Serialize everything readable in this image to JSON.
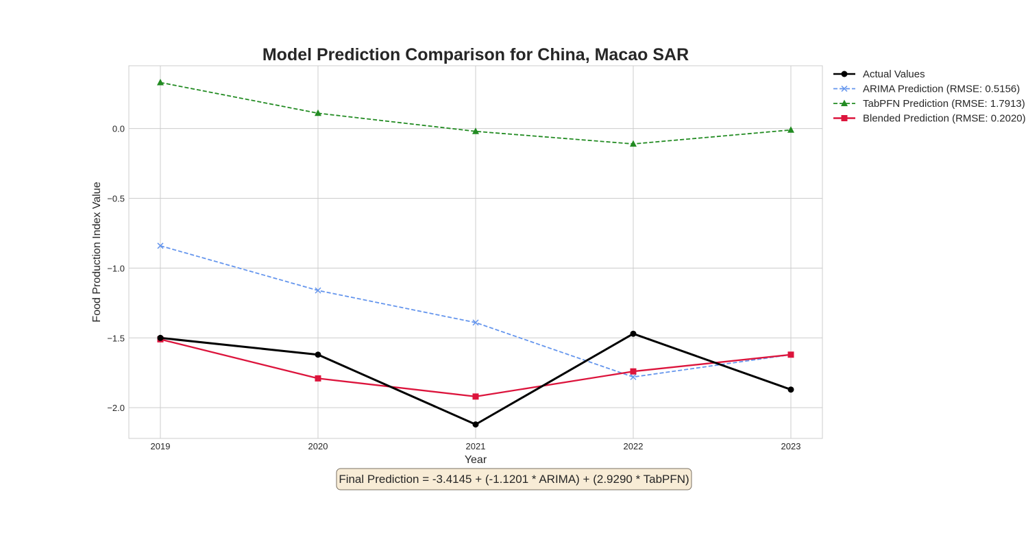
{
  "chart_data": {
    "type": "line",
    "title": "Model Prediction Comparison for China, Macao SAR",
    "xlabel": "Year",
    "ylabel": "Food Production Index Value",
    "x": [
      2019,
      2020,
      2021,
      2022,
      2023
    ],
    "x_tick_labels": [
      "2019",
      "2020",
      "2021",
      "2022",
      "2023"
    ],
    "xlim": [
      2018.8,
      2023.2
    ],
    "ylim": [
      -2.22,
      0.45
    ],
    "y_ticks": [
      0.0,
      -0.5,
      -1.0,
      -1.5,
      -2.0
    ],
    "y_tick_labels": [
      "0.0",
      "−0.5",
      "−1.0",
      "−1.5",
      "−2.0"
    ],
    "grid": true,
    "legend_position": "outside-right-top",
    "series": [
      {
        "name": "Actual Values",
        "values": [
          -1.5,
          -1.62,
          -2.12,
          -1.47,
          -1.87
        ],
        "color": "#000000",
        "dash": "solid",
        "marker": "circle"
      },
      {
        "name": "ARIMA Prediction (RMSE: 0.5156)",
        "values": [
          -0.84,
          -1.16,
          -1.39,
          -1.78,
          -1.62
        ],
        "color": "#6495ed",
        "dash": "dashed",
        "marker": "x"
      },
      {
        "name": "TabPFN Prediction (RMSE: 1.7913)",
        "values": [
          0.33,
          0.11,
          -0.02,
          -0.11,
          -0.01
        ],
        "color": "#228b22",
        "dash": "dashed",
        "marker": "triangle"
      },
      {
        "name": "Blended Prediction (RMSE: 0.2020)",
        "values": [
          -1.51,
          -1.79,
          -1.92,
          -1.74,
          -1.62
        ],
        "color": "#dc143c",
        "dash": "solid",
        "marker": "square"
      }
    ],
    "annotation": "Final Prediction = -3.4145 + (-1.1201 * ARIMA) + (2.9290 * TabPFN)"
  }
}
